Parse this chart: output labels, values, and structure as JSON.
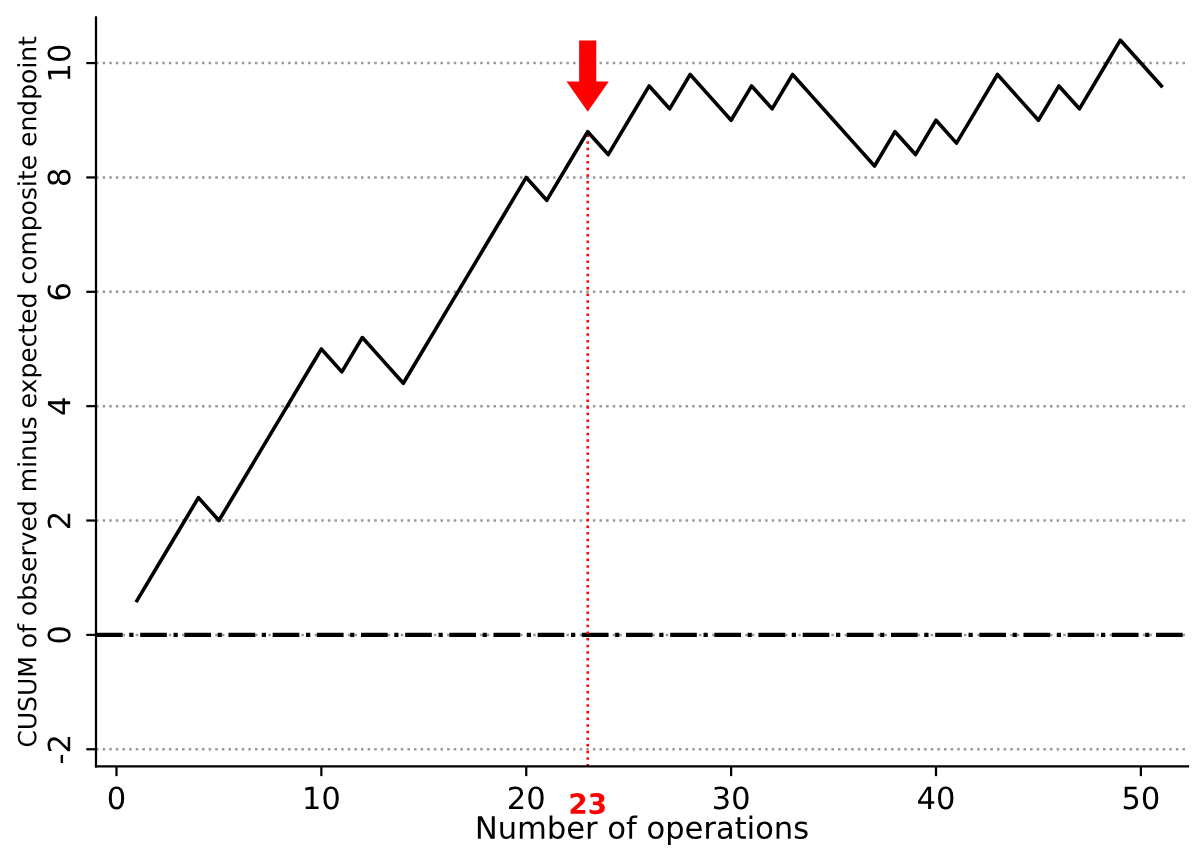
{
  "chart_data": {
    "type": "line",
    "xlabel": "Number of operations",
    "ylabel": "CUSUM of observed minus expected composite endpoint",
    "x": [
      1,
      2,
      3,
      4,
      5,
      6,
      7,
      8,
      9,
      10,
      11,
      12,
      13,
      14,
      15,
      16,
      17,
      18,
      19,
      20,
      21,
      22,
      23,
      24,
      25,
      26,
      27,
      28,
      29,
      30,
      31,
      32,
      33,
      34,
      35,
      36,
      37,
      38,
      39,
      40,
      41,
      42,
      43,
      44,
      45,
      46,
      47,
      48,
      49,
      50,
      51
    ],
    "series": [
      {
        "color": "#000000",
        "values": [
          0.6,
          1.2,
          1.8,
          2.4,
          2.0,
          2.6,
          3.2,
          3.8,
          4.4,
          5.0,
          4.6,
          5.2,
          4.8,
          4.4,
          5.0,
          5.6,
          6.2,
          6.8,
          7.4,
          8.0,
          7.6,
          8.2,
          8.8,
          8.4,
          9.0,
          9.6,
          9.2,
          9.8,
          9.4,
          9.0,
          9.6,
          9.2,
          9.8,
          9.4,
          9.0,
          8.6,
          8.2,
          8.8,
          8.4,
          9.0,
          8.6,
          9.2,
          9.8,
          9.4,
          9.0,
          9.6,
          9.2,
          9.8,
          10.4,
          10.0,
          9.6
        ]
      }
    ],
    "xlim": [
      -1,
      52.3
    ],
    "ylim": [
      -2.3,
      10.8
    ],
    "xticks": [
      0,
      10,
      20,
      30,
      40,
      50
    ],
    "yticks": [
      -2,
      0,
      2,
      4,
      6,
      8,
      10
    ],
    "grid": "y",
    "marker": "none",
    "line_style": "solid",
    "ref_lines": [
      {
        "axis": "y",
        "value": 0,
        "color": "#000000",
        "line_style": "dashdot"
      },
      {
        "axis": "x",
        "value": 23,
        "label": "23",
        "color": "#ff0000",
        "line_style": "dotted"
      }
    ]
  }
}
